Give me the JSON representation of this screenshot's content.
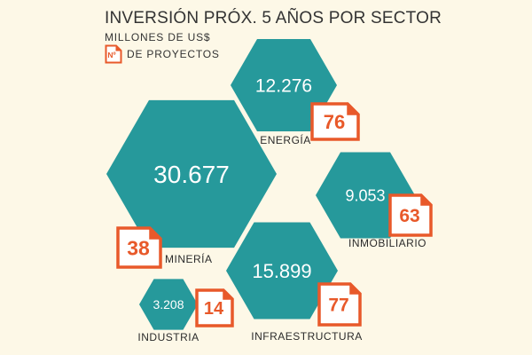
{
  "header": {
    "title": "INVERSIÓN PRÓX. 5 AÑOS POR SECTOR",
    "subtitle": "MILLONES DE US$",
    "legend_icon_text": "Nº",
    "legend_label": "DE PROYECTOS"
  },
  "colors": {
    "hexagon": "#26999b",
    "badge": "#e8592a",
    "background": "#fdf8e7",
    "value_text": "#ffffff",
    "label_text": "#2b2b2b"
  },
  "chart_data": {
    "type": "bubble",
    "title": "INVERSIÓN PRÓX. 5 AÑOS POR SECTOR",
    "units": "MILLONES DE US$",
    "secondary_measure": "Nº DE PROYECTOS",
    "sectors": [
      {
        "name": "ENERGÍA",
        "investment": 12276,
        "investment_label": "12.276",
        "projects": 76
      },
      {
        "name": "MINERÍA",
        "investment": 30677,
        "investment_label": "30.677",
        "projects": 38
      },
      {
        "name": "INMOBILIARIO",
        "investment": 9053,
        "investment_label": "9.053",
        "projects": 63
      },
      {
        "name": "INFRAESTRUCTURA",
        "investment": 15899,
        "investment_label": "15.899",
        "projects": 77
      },
      {
        "name": "INDUSTRIA",
        "investment": 3208,
        "investment_label": "3.208",
        "projects": 14
      }
    ]
  }
}
